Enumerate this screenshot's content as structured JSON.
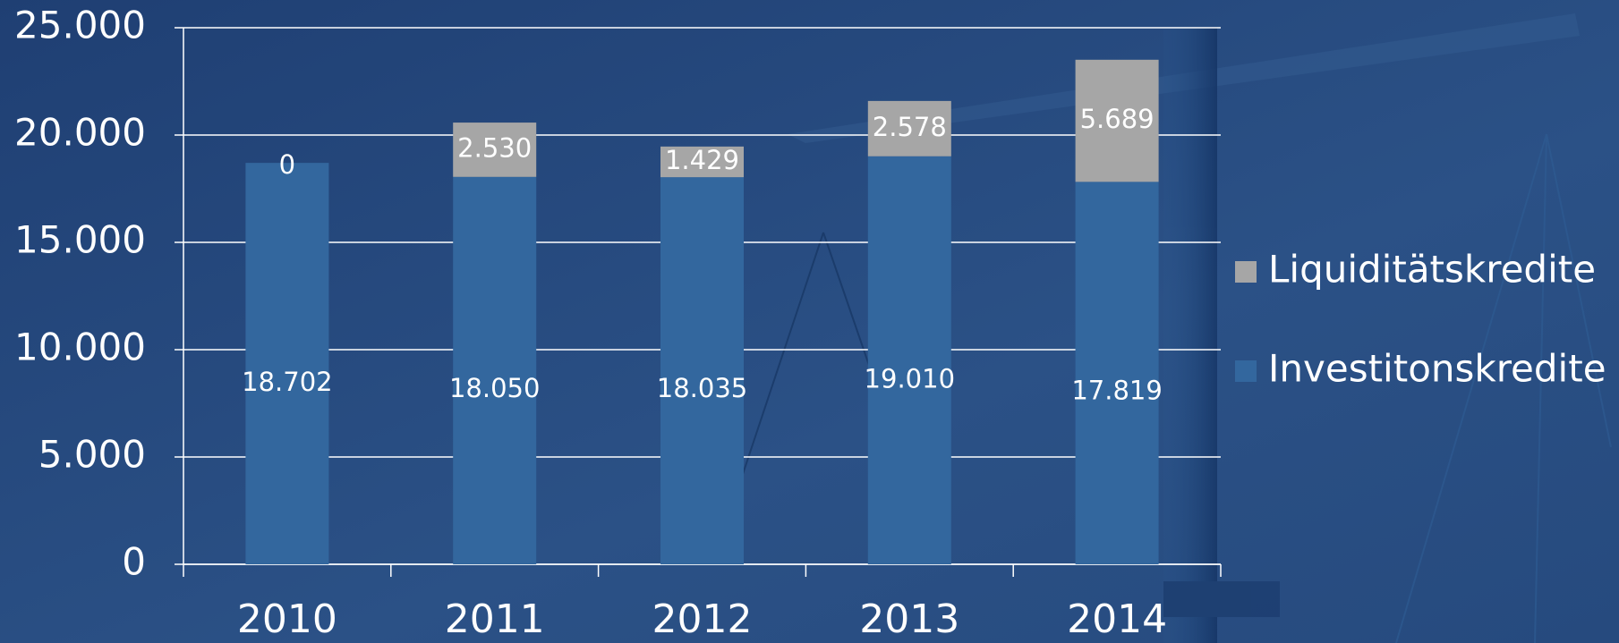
{
  "chart_data": {
    "type": "stacked_bar",
    "categories": [
      "2010",
      "2011",
      "2012",
      "2013",
      "2014"
    ],
    "series": [
      {
        "name": "Investitonskredite",
        "color": "#33679e",
        "values": [
          18702,
          18050,
          18035,
          19010,
          17819
        ],
        "value_labels": [
          "18.702",
          "18.050",
          "18.035",
          "19.010",
          "17.819"
        ]
      },
      {
        "name": "Liquiditätskredite",
        "color": "#a6a6a6",
        "values": [
          0,
          2530,
          1429,
          2578,
          5689
        ],
        "value_labels": [
          "0",
          "2.530",
          "1.429",
          "2.578",
          "5.689"
        ]
      }
    ],
    "ylim": [
      0,
      25000
    ],
    "yticks": [
      0,
      {
        "value": 5000,
        "label": "5.000"
      },
      {
        "value": 10000,
        "label": "10.000"
      },
      {
        "value": 15000,
        "label": "15.000"
      },
      {
        "value": 20000,
        "label": "20.000"
      },
      {
        "value": 25000,
        "label": "25.000"
      }
    ],
    "grid": true,
    "legend": "right"
  }
}
